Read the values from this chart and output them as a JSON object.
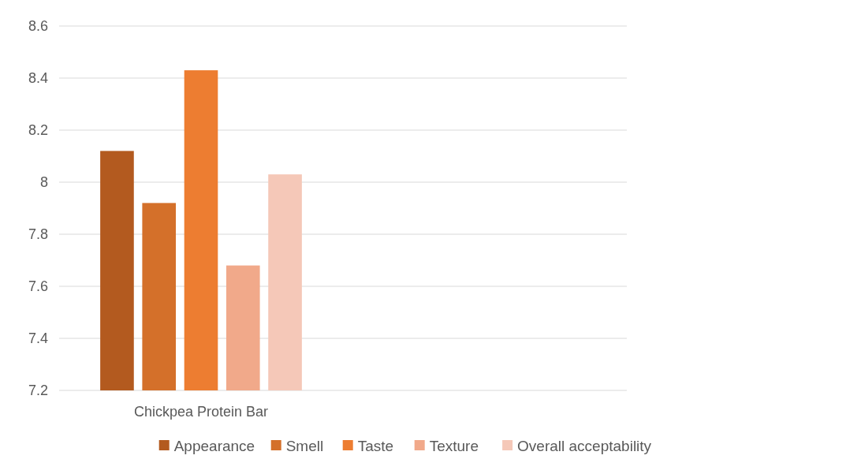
{
  "chart_data": {
    "type": "bar",
    "categories": [
      "Chickpea Protein Bar",
      null
    ],
    "series": [
      {
        "name": "Appearance",
        "color": "#b35a1f",
        "values": [
          8.12,
          null
        ]
      },
      {
        "name": "Smell",
        "color": "#d4702a",
        "values": [
          7.92,
          null
        ]
      },
      {
        "name": "Taste",
        "color": "#ed7d31",
        "values": [
          8.43,
          null
        ]
      },
      {
        "name": "Texture",
        "color": "#f1a98a",
        "values": [
          7.68,
          null
        ]
      },
      {
        "name": "Overall acceptability",
        "color": "#f5c8b8",
        "values": [
          8.03,
          null
        ]
      }
    ],
    "ylim": [
      7.2,
      8.6
    ],
    "yticks": [
      7.2,
      7.4,
      7.6,
      7.8,
      {
        "value": 8,
        "label": "8"
      },
      8.2,
      8.4,
      8.6
    ],
    "grid": "y",
    "legend": "bottom"
  }
}
